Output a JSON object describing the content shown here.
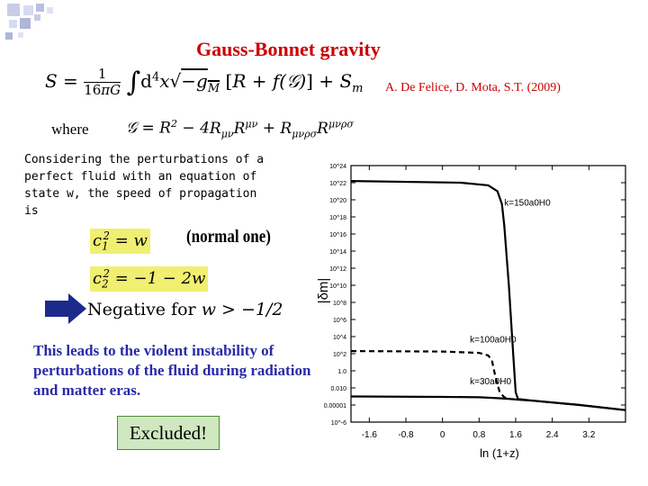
{
  "slide": {
    "title": "Gauss-Bonnet gravity",
    "citation": "A. De Felice, D. Mota, S.T. (2009)",
    "where_label": "where",
    "description": "Considering the perturbations of a perfect fluid with an equation of state w, the speed of propagation is",
    "normal_label": "(normal one)",
    "warning": "This leads to the violent instability of perturbations of the fluid during radiation and matter eras.",
    "excluded_label": "Excluded!",
    "negative_word": "Negative for",
    "colors": {
      "title": "#cc0000",
      "warning": "#2a2aa8",
      "highlight": "#f0ef72",
      "excluded_bg": "#cfe8c0",
      "arrow": "#1c2a8c"
    }
  },
  "chart_data": {
    "type": "line",
    "xlabel": "ln (1+z)",
    "ylabel": "|δm|",
    "xlim": [
      -2.0,
      4.0
    ],
    "x_ticks": [
      "-1.6",
      "-0.8",
      "0",
      "0.8",
      "1.6",
      "2.4",
      "3.2"
    ],
    "x_tick_values": [
      -1.6,
      -0.8,
      0,
      0.8,
      1.6,
      2.4,
      3.2
    ],
    "y_ticks": [
      "10^-6",
      "0.00001",
      "0.010",
      "1.0",
      "10^2",
      "10^4",
      "10^6",
      "10^8",
      "10^10",
      "10^12",
      "10^14",
      "10^16",
      "10^18",
      "10^20",
      "10^22",
      "10^24"
    ],
    "series": [
      {
        "name": "k=150a0H0",
        "style": "solid",
        "x": [
          -2.0,
          0.4,
          1.0,
          1.2,
          1.3,
          1.35,
          1.45,
          1.55,
          1.6,
          1.65,
          2.0,
          3.0,
          4.0
        ],
        "y": [
          22.2,
          22.0,
          21.7,
          21.0,
          19.5,
          17.0,
          10.0,
          1.5,
          -2.5,
          -3.3,
          -3.5,
          -4.0,
          -4.6
        ]
      },
      {
        "name": "k=100a0H0",
        "style": "dashed",
        "x": [
          -2.0,
          0.0,
          0.8,
          1.0,
          1.08,
          1.15,
          1.25,
          1.35,
          1.45
        ],
        "y": [
          2.3,
          2.25,
          2.1,
          1.8,
          1.2,
          -0.5,
          -2.5,
          -3.1,
          -3.3
        ]
      },
      {
        "name": "k=30a0H0",
        "style": "solid",
        "x": [
          -2.0,
          0.0,
          0.8,
          1.2,
          1.5,
          1.7,
          2.0,
          3.0,
          4.0
        ],
        "y": [
          -3.0,
          -3.05,
          -3.1,
          -3.2,
          -3.3,
          -3.4,
          -3.5,
          -4.0,
          -4.6
        ]
      }
    ],
    "grid": false,
    "legend": "inline labels"
  }
}
